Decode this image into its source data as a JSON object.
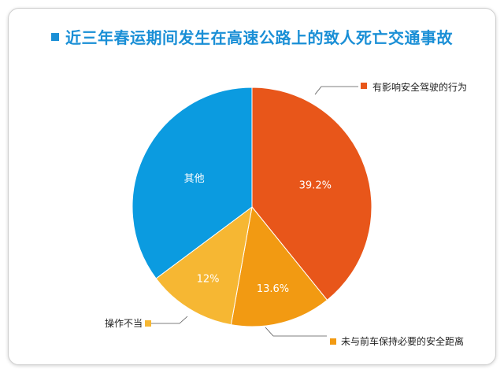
{
  "title": "近三年春运期间发生在高速公路上的致人死亡交通事故",
  "colors": {
    "title": "#1a8fd6",
    "line": "#555555"
  },
  "chart_data": {
    "type": "pie",
    "slices": [
      {
        "label": "有影响安全驾驶的行为",
        "value": 39.2,
        "value_label": "39.2%",
        "color": "#e8561a"
      },
      {
        "label": "未与前车保持必要的安全距离",
        "value": 13.6,
        "value_label": "13.6%",
        "color": "#f29a12"
      },
      {
        "label": "操作不当",
        "value": 12,
        "value_label": "12%",
        "color": "#f6b733"
      },
      {
        "label": "其他",
        "value": 35.2,
        "value_label": "",
        "inner_label": "其他",
        "color": "#0b9be0"
      }
    ]
  }
}
